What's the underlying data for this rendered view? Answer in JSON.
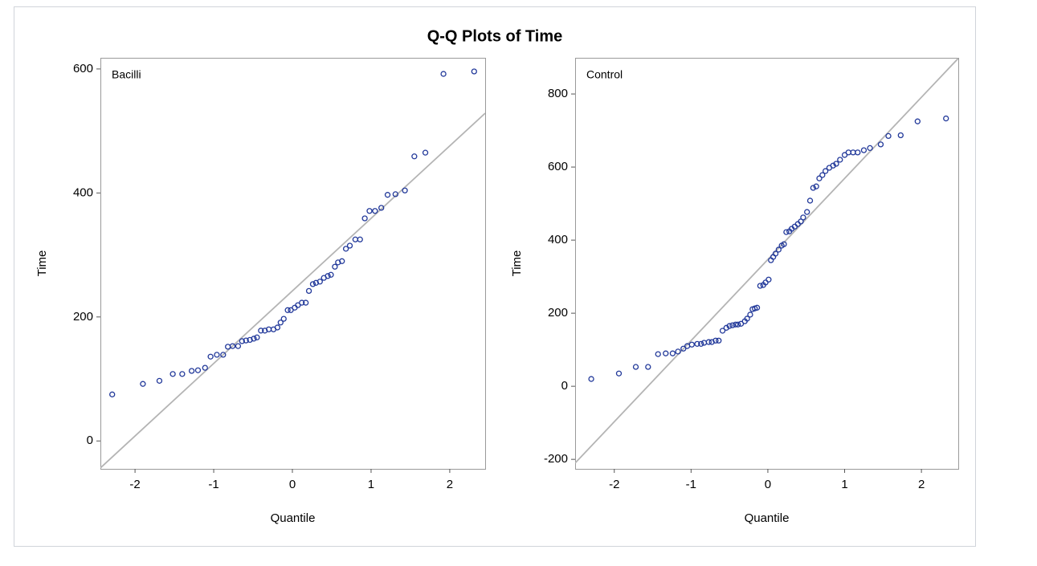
{
  "title": "Q-Q Plots of Time",
  "chart_data": [
    {
      "type": "scatter",
      "label": "Bacilli",
      "xlabel": "Quantile",
      "ylabel": "Time",
      "color": "#22399a",
      "reference_line": {
        "intercept": 242,
        "slope": 117,
        "color": "#b4b4b4"
      },
      "xlim": [
        -2.44,
        2.45
      ],
      "ylim": [
        -45,
        618
      ],
      "xticks": [
        -2,
        -1,
        0,
        1,
        2
      ],
      "yticks": [
        0,
        200,
        400,
        600
      ],
      "x": [
        -2.29,
        -1.9,
        -1.69,
        -1.52,
        -1.4,
        -1.28,
        -1.2,
        -1.11,
        -1.04,
        -0.96,
        -0.88,
        -0.82,
        -0.76,
        -0.69,
        -0.64,
        -0.59,
        -0.54,
        -0.49,
        -0.45,
        -0.4,
        -0.35,
        -0.3,
        -0.24,
        -0.19,
        -0.15,
        -0.11,
        -0.06,
        -0.02,
        0.03,
        0.07,
        0.12,
        0.17,
        0.21,
        0.26,
        0.3,
        0.35,
        0.4,
        0.45,
        0.49,
        0.54,
        0.58,
        0.63,
        0.68,
        0.73,
        0.8,
        0.86,
        0.92,
        0.98,
        1.05,
        1.13,
        1.21,
        1.31,
        1.43,
        1.55,
        1.69,
        1.92,
        2.31
      ],
      "values": [
        75,
        92,
        97,
        108,
        108,
        113,
        114,
        118,
        136,
        139,
        139,
        152,
        153,
        153,
        161,
        162,
        163,
        165,
        167,
        178,
        178,
        180,
        180,
        183,
        191,
        197,
        211,
        211,
        215,
        219,
        223,
        223,
        242,
        253,
        255,
        257,
        263,
        266,
        268,
        281,
        288,
        290,
        310,
        315,
        325,
        325,
        359,
        371,
        371,
        376,
        397,
        398,
        404,
        459,
        465,
        592,
        596
      ]
    },
    {
      "type": "scatter",
      "label": "Control",
      "xlabel": "Quantile",
      "ylabel": "Time",
      "color": "#22399a",
      "reference_line": {
        "intercept": 347,
        "slope": 222,
        "color": "#b4b4b4"
      },
      "xlim": [
        -2.51,
        2.48
      ],
      "ylim": [
        -226,
        899
      ],
      "xticks": [
        -2,
        -1,
        0,
        1,
        2
      ],
      "yticks": [
        -200,
        0,
        200,
        400,
        600,
        800
      ],
      "x": [
        -2.3,
        -1.94,
        -1.72,
        -1.56,
        -1.43,
        -1.33,
        -1.24,
        -1.17,
        -1.1,
        -1.05,
        -0.99,
        -0.92,
        -0.87,
        -0.83,
        -0.77,
        -0.73,
        -0.68,
        -0.64,
        -0.59,
        -0.54,
        -0.5,
        -0.46,
        -0.42,
        -0.39,
        -0.35,
        -0.3,
        -0.27,
        -0.23,
        -0.2,
        -0.17,
        -0.14,
        -0.1,
        -0.06,
        -0.03,
        0.01,
        0.04,
        0.07,
        0.1,
        0.14,
        0.18,
        0.21,
        0.24,
        0.28,
        0.31,
        0.35,
        0.39,
        0.43,
        0.46,
        0.51,
        0.55,
        0.59,
        0.63,
        0.67,
        0.71,
        0.75,
        0.8,
        0.85,
        0.89,
        0.94,
        1.0,
        1.05,
        1.11,
        1.17,
        1.25,
        1.33,
        1.47,
        1.57,
        1.73,
        1.95,
        2.32
      ],
      "values": [
        20,
        35,
        53,
        53,
        88,
        90,
        90,
        95,
        103,
        110,
        114,
        116,
        116,
        119,
        121,
        121,
        125,
        125,
        152,
        160,
        165,
        167,
        169,
        169,
        171,
        178,
        185,
        196,
        211,
        213,
        215,
        275,
        277,
        284,
        292,
        345,
        354,
        363,
        374,
        385,
        389,
        422,
        424,
        431,
        437,
        444,
        451,
        462,
        477,
        508,
        543,
        547,
        569,
        578,
        589,
        598,
        604,
        609,
        620,
        633,
        640,
        640,
        640,
        646,
        652,
        662,
        685,
        687,
        725,
        733
      ]
    }
  ]
}
